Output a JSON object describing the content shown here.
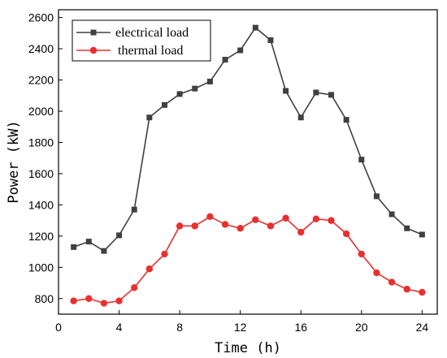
{
  "chart_data": {
    "type": "line",
    "xlabel": "Time (h)",
    "ylabel": "Power (kW)",
    "xlim": [
      0,
      25
    ],
    "ylim": [
      700,
      2650
    ],
    "xticks": [
      0,
      4,
      8,
      12,
      16,
      20,
      24
    ],
    "yticks": [
      800,
      1000,
      1200,
      1400,
      1600,
      1800,
      2000,
      2200,
      2400,
      2600
    ],
    "grid": false,
    "legend_position": "top-left",
    "series": [
      {
        "name": "electrical load",
        "color": "#404040",
        "marker": "square",
        "x": [
          1,
          2,
          3,
          4,
          5,
          6,
          7,
          8,
          9,
          10,
          11,
          12,
          13,
          14,
          15,
          16,
          17,
          18,
          19,
          20,
          21,
          22,
          23,
          24
        ],
        "values": [
          1130,
          1165,
          1105,
          1205,
          1370,
          1960,
          2040,
          2110,
          2145,
          2190,
          2330,
          2390,
          2535,
          2455,
          2130,
          1960,
          2120,
          2105,
          1945,
          1690,
          1455,
          1340,
          1250,
          1210
        ]
      },
      {
        "name": "thermal load",
        "color": "#e8302f",
        "marker": "circle",
        "x": [
          1,
          2,
          3,
          4,
          5,
          6,
          7,
          8,
          9,
          10,
          11,
          12,
          13,
          14,
          15,
          16,
          17,
          18,
          19,
          20,
          21,
          22,
          23,
          24
        ],
        "values": [
          785,
          800,
          770,
          785,
          870,
          990,
          1085,
          1265,
          1265,
          1325,
          1275,
          1250,
          1305,
          1265,
          1315,
          1225,
          1310,
          1300,
          1215,
          1085,
          965,
          905,
          860,
          840
        ]
      }
    ]
  }
}
